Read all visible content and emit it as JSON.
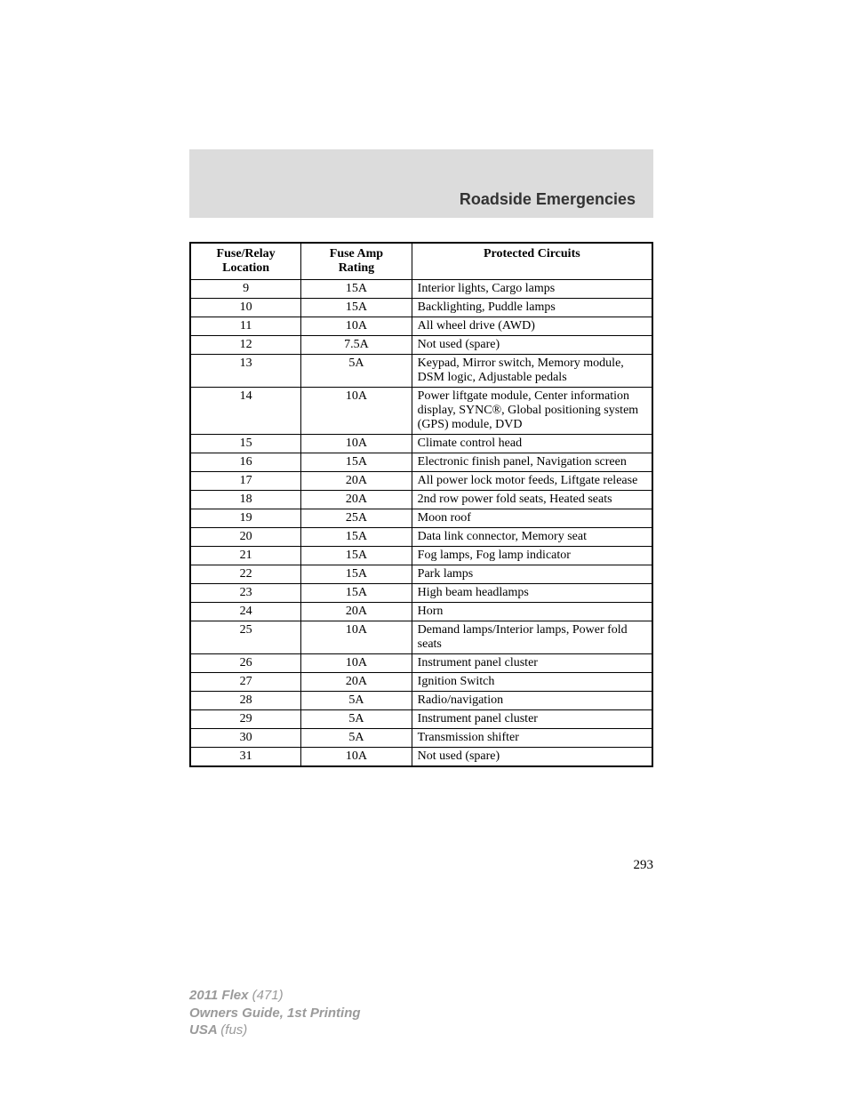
{
  "header": {
    "title": "Roadside Emergencies"
  },
  "table": {
    "columns": [
      "Fuse/Relay Location",
      "Fuse Amp Rating",
      "Protected Circuits"
    ],
    "rows": [
      [
        "9",
        "15A",
        "Interior lights, Cargo lamps"
      ],
      [
        "10",
        "15A",
        "Backlighting, Puddle lamps"
      ],
      [
        "11",
        "10A",
        "All wheel drive (AWD)"
      ],
      [
        "12",
        "7.5A",
        "Not used (spare)"
      ],
      [
        "13",
        "5A",
        "Keypad, Mirror switch, Memory module, DSM logic, Adjustable pedals"
      ],
      [
        "14",
        "10A",
        "Power liftgate module, Center information display, SYNC®, Global positioning system (GPS) module, DVD"
      ],
      [
        "15",
        "10A",
        "Climate control head"
      ],
      [
        "16",
        "15A",
        "Electronic finish panel, Navigation screen"
      ],
      [
        "17",
        "20A",
        "All power lock motor feeds, Liftgate release"
      ],
      [
        "18",
        "20A",
        "2nd row power fold seats, Heated seats"
      ],
      [
        "19",
        "25A",
        "Moon roof"
      ],
      [
        "20",
        "15A",
        "Data link connector, Memory seat"
      ],
      [
        "21",
        "15A",
        "Fog lamps, Fog lamp indicator"
      ],
      [
        "22",
        "15A",
        "Park lamps"
      ],
      [
        "23",
        "15A",
        "High beam headlamps"
      ],
      [
        "24",
        "20A",
        "Horn"
      ],
      [
        "25",
        "10A",
        "Demand lamps/Interior lamps, Power fold seats"
      ],
      [
        "26",
        "10A",
        "Instrument panel cluster"
      ],
      [
        "27",
        "20A",
        "Ignition Switch"
      ],
      [
        "28",
        "5A",
        "Radio/navigation"
      ],
      [
        "29",
        "5A",
        "Instrument panel cluster"
      ],
      [
        "30",
        "5A",
        "Transmission shifter"
      ],
      [
        "31",
        "10A",
        "Not used (spare)"
      ]
    ]
  },
  "page_number": "293",
  "footer": {
    "line1_bold": "2011 Flex ",
    "line1_italic": "(471)",
    "line2_bold": "Owners Guide, 1st Printing",
    "line3_bold": "USA ",
    "line3_italic": "(fus)"
  },
  "styling": {
    "header_bg": "#dcdcdc",
    "border_color": "#000000",
    "footer_color": "#9a9a9a",
    "body_font": "Georgia, serif",
    "header_font": "Arial, sans-serif",
    "table_font_size": 14,
    "header_font_size": 18
  }
}
